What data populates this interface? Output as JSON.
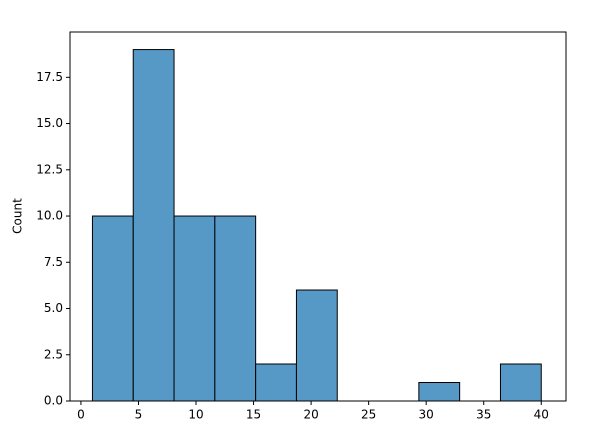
{
  "chart_data": {
    "type": "histogram",
    "ylabel": "Count",
    "bins": [
      1,
      4.545,
      8.091,
      11.636,
      15.182,
      18.727,
      22.273,
      25.818,
      29.364,
      32.909,
      36.455,
      40
    ],
    "values": [
      10,
      19,
      10,
      10,
      2,
      6,
      0,
      0,
      1,
      0,
      2
    ],
    "color": "#5799c6",
    "xlim": [
      -0.95,
      42.15
    ],
    "xticks": [
      0,
      5,
      10,
      15,
      20,
      25,
      30,
      35,
      40
    ],
    "ylim": [
      0,
      19.95
    ],
    "yticks": [
      {
        "value": 0,
        "label": "0.0"
      },
      {
        "value": 2.5,
        "label": "2.5"
      },
      {
        "value": 5,
        "label": "5.0"
      },
      {
        "value": 7.5,
        "label": "7.5"
      },
      {
        "value": 10,
        "label": "10.0"
      },
      {
        "value": 12.5,
        "label": "12.5"
      },
      {
        "value": 15,
        "label": "15.0"
      },
      {
        "value": 17.5,
        "label": "17.5"
      }
    ]
  }
}
